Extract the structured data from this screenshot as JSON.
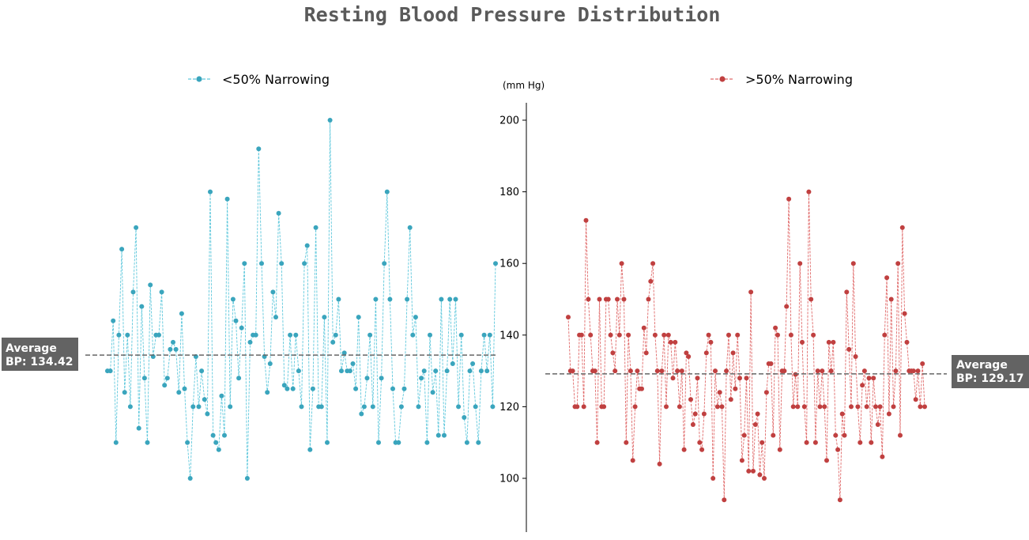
{
  "chart_data": {
    "type": "line",
    "title": "Resting Blood Pressure Distribution",
    "y_unit_label": "(mm Hg)",
    "ylim": [
      85,
      205
    ],
    "yticks": [
      "100",
      "120",
      "140",
      "160",
      "180",
      "200"
    ],
    "grid": false,
    "series": [
      {
        "name": "<50% Narrowing",
        "color": "#3aa5bd",
        "line_color": "#5fc8dc",
        "average": 134.42,
        "average_label_line1": "Average",
        "average_label_line2": "BP: 134.42",
        "values": [
          130,
          130,
          144,
          110,
          140,
          164,
          124,
          140,
          120,
          152,
          170,
          114,
          148,
          128,
          110,
          154,
          134,
          140,
          140,
          152,
          126,
          128,
          136,
          138,
          136,
          124,
          146,
          125,
          110,
          100,
          120,
          134,
          120,
          130,
          122,
          118,
          180,
          112,
          110,
          108,
          123,
          112,
          178,
          120,
          150,
          144,
          128,
          142,
          160,
          100,
          138,
          140,
          140,
          192,
          160,
          134,
          124,
          132,
          152,
          145,
          174,
          160,
          126,
          125,
          140,
          125,
          140,
          130,
          120,
          160,
          165,
          108,
          125,
          170,
          120,
          120,
          145,
          110,
          200,
          138,
          140,
          150,
          130,
          135,
          130,
          130,
          132,
          125,
          145,
          118,
          120,
          128,
          140,
          120,
          150,
          110,
          128,
          160,
          180,
          150,
          125,
          110,
          110,
          120,
          125,
          150,
          170,
          140,
          145,
          120,
          128,
          130,
          110,
          140,
          124,
          130,
          112,
          150,
          112,
          130,
          150,
          132,
          150,
          120,
          140,
          117,
          110,
          130,
          132,
          120,
          110,
          130,
          140,
          130,
          140,
          120,
          160
        ]
      },
      {
        "name": ">50% Narrowing",
        "color": "#c04040",
        "line_color": "#e06a6a",
        "average": 129.17,
        "average_label_line1": "Average",
        "average_label_line2": "BP: 129.17",
        "values": [
          145,
          130,
          130,
          120,
          120,
          140,
          140,
          120,
          172,
          150,
          140,
          130,
          130,
          110,
          150,
          120,
          120,
          150,
          150,
          140,
          135,
          130,
          150,
          140,
          160,
          150,
          110,
          140,
          130,
          105,
          120,
          130,
          125,
          125,
          142,
          135,
          150,
          155,
          160,
          140,
          130,
          104,
          130,
          140,
          120,
          140,
          138,
          128,
          138,
          130,
          120,
          130,
          108,
          135,
          134,
          122,
          115,
          118,
          128,
          110,
          108,
          118,
          135,
          140,
          138,
          100,
          130,
          120,
          124,
          120,
          94,
          130,
          140,
          122,
          135,
          125,
          140,
          128,
          105,
          112,
          128,
          102,
          152,
          102,
          115,
          118,
          101,
          110,
          100,
          124,
          132,
          132,
          112,
          142,
          140,
          108,
          130,
          130,
          148,
          178,
          140,
          120,
          129,
          120,
          160,
          138,
          120,
          110,
          180,
          150,
          140,
          110,
          130,
          120,
          130,
          120,
          105,
          138,
          130,
          138,
          112,
          108,
          94,
          118,
          112,
          152,
          136,
          120,
          160,
          134,
          120,
          110,
          126,
          130,
          120,
          128,
          110,
          128,
          120,
          115,
          120,
          106,
          140,
          156,
          118,
          150,
          120,
          130,
          160,
          112,
          170,
          146,
          138,
          130,
          130,
          130,
          122,
          130,
          120,
          132,
          120
        ]
      }
    ]
  }
}
